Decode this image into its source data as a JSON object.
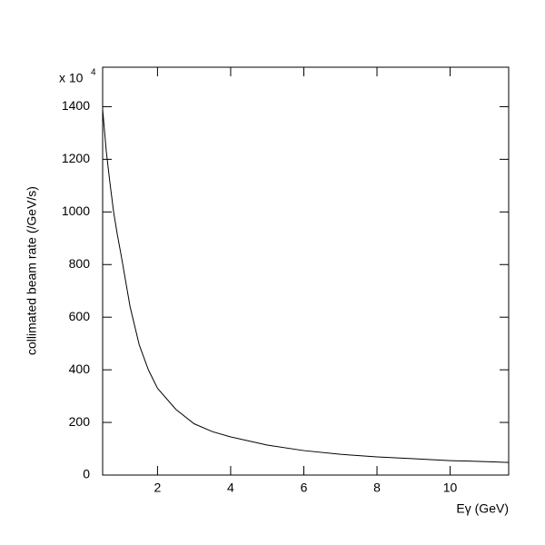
{
  "chart_data": {
    "type": "line",
    "y_label": "collimated beam rate (/GeV/s)",
    "x_label": "Eγ (GeV)",
    "y_multiplier": "x 10",
    "y_multiplier_exp": "4",
    "xlim": [
      0.5,
      11.6
    ],
    "xticks": [
      2,
      4,
      6,
      8,
      10
    ],
    "ylim": [
      0,
      1550
    ],
    "yticks": [
      0,
      200,
      400,
      600,
      800,
      1000,
      1200,
      1400
    ],
    "grid": false,
    "color": "#000000",
    "x": [
      0.5,
      0.6,
      0.7,
      0.8,
      0.9,
      1.0,
      1.25,
      1.5,
      1.75,
      2,
      2.5,
      3,
      3.5,
      4,
      5,
      6,
      7,
      8,
      9,
      10,
      11,
      11.6
    ],
    "values": [
      1390,
      1230,
      1110,
      1000,
      915,
      840,
      640,
      495,
      400,
      330,
      250,
      195,
      165,
      145,
      114,
      93,
      79,
      69,
      62,
      55,
      51,
      48
    ]
  }
}
